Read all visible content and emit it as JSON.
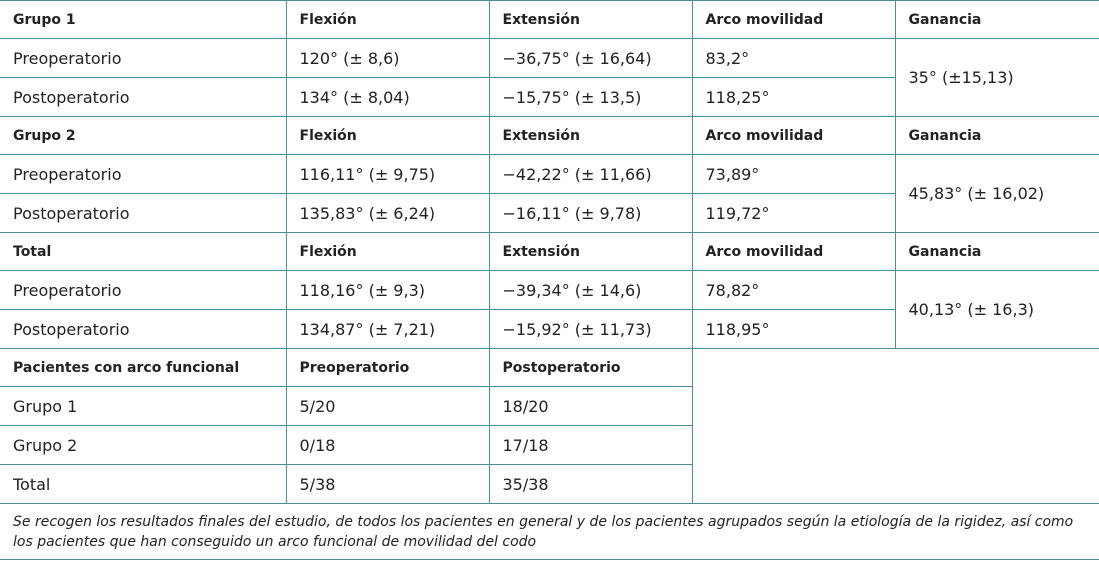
{
  "groups": [
    {
      "header": [
        "Grupo 1",
        "Flexión",
        "Extensión",
        "Arco movilidad",
        "Ganancia"
      ],
      "rows": [
        [
          "Preoperatorio",
          "120° (± 8,6)",
          "−36,75° (± 16,64)",
          "83,2°"
        ],
        [
          "Postoperatorio",
          "134° (± 8,04)",
          "−15,75° (± 13,5)",
          "118,25°"
        ]
      ],
      "gain": "35° (±15,13)"
    },
    {
      "header": [
        "Grupo 2",
        "Flexión",
        "Extensión",
        "Arco movilidad",
        "Ganancia"
      ],
      "rows": [
        [
          "Preoperatorio",
          "116,11° (± 9,75)",
          "−42,22° (± 11,66)",
          "73,89°"
        ],
        [
          "Postoperatorio",
          "135,83° (± 6,24)",
          "−16,11° (± 9,78)",
          "119,72°"
        ]
      ],
      "gain": "45,83° (± 16,02)"
    },
    {
      "header": [
        "Total",
        "Flexión",
        "Extensión",
        "Arco movilidad",
        "Ganancia"
      ],
      "rows": [
        [
          "Preoperatorio",
          "118,16° (± 9,3)",
          "−39,34° (± 14,6)",
          "78,82°"
        ],
        [
          "Postoperatorio",
          "134,87° (± 7,21)",
          "−15,92° (± 11,73)",
          "118,95°"
        ]
      ],
      "gain": "40,13° (± 16,3)"
    }
  ],
  "functional": {
    "header": [
      "Pacientes con arco funcional",
      "Preoperatorio",
      "Postoperatorio"
    ],
    "rows": [
      [
        "Grupo 1",
        "5/20",
        "18/20"
      ],
      [
        "Grupo 2",
        "0/18",
        "17/18"
      ],
      [
        "Total",
        "5/38",
        "35/38"
      ]
    ]
  },
  "caption": "Se recogen los resultados finales del estudio, de todos los pacientes en general y de los pacientes agrupados según la etiología de la rigidez, así como los pacientes que han conseguido un arco funcional de movilidad del codo"
}
